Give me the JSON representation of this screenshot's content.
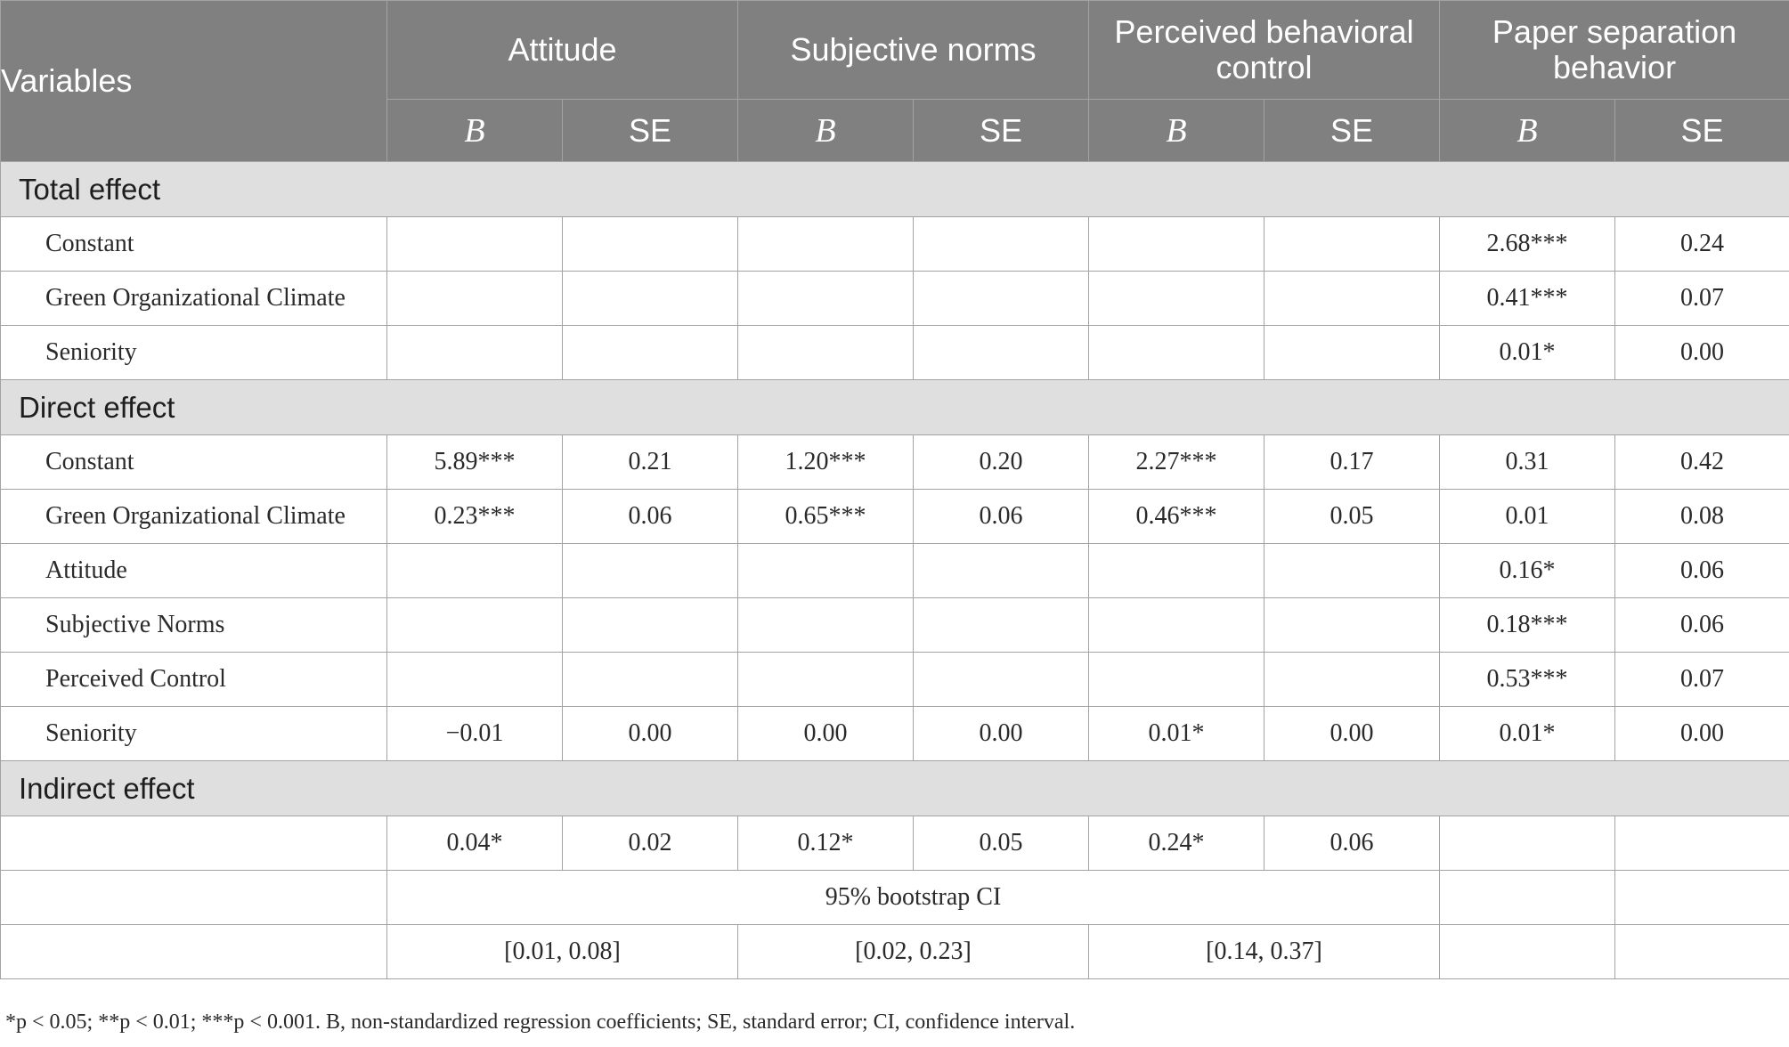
{
  "table": {
    "header": {
      "variables": "Variables",
      "groups": [
        "Attitude",
        "Subjective norms",
        "Perceived behavioral control",
        "Paper separation behavior"
      ],
      "sub": [
        "B",
        "SE"
      ]
    },
    "sections": {
      "total": {
        "title": "Total effect",
        "rows": [
          {
            "label": "Constant",
            "cells": [
              "",
              "",
              "",
              "",
              "",
              "",
              "2.68***",
              "0.24"
            ]
          },
          {
            "label": "Green Organizational Climate",
            "cells": [
              "",
              "",
              "",
              "",
              "",
              "",
              "0.41***",
              "0.07"
            ]
          },
          {
            "label": "Seniority",
            "cells": [
              "",
              "",
              "",
              "",
              "",
              "",
              "0.01*",
              "0.00"
            ]
          }
        ]
      },
      "direct": {
        "title": "Direct effect",
        "rows": [
          {
            "label": "Constant",
            "cells": [
              "5.89***",
              "0.21",
              "1.20***",
              "0.20",
              "2.27***",
              "0.17",
              "0.31",
              "0.42"
            ]
          },
          {
            "label": "Green Organizational Climate",
            "cells": [
              "0.23***",
              "0.06",
              "0.65***",
              "0.06",
              "0.46***",
              "0.05",
              "0.01",
              "0.08"
            ]
          },
          {
            "label": "Attitude",
            "cells": [
              "",
              "",
              "",
              "",
              "",
              "",
              "0.16*",
              "0.06"
            ]
          },
          {
            "label": "Subjective Norms",
            "cells": [
              "",
              "",
              "",
              "",
              "",
              "",
              "0.18***",
              "0.06"
            ]
          },
          {
            "label": "Perceived Control",
            "cells": [
              "",
              "",
              "",
              "",
              "",
              "",
              "0.53***",
              "0.07"
            ]
          },
          {
            "label": "Seniority",
            "cells": [
              "−0.01",
              "0.00",
              "0.00",
              "0.00",
              "0.01*",
              "0.00",
              "0.01*",
              "0.00"
            ]
          }
        ]
      },
      "indirect": {
        "title": "Indirect effect",
        "coef_row": {
          "label": "",
          "cells": [
            "0.04*",
            "0.02",
            "0.12*",
            "0.05",
            "0.24*",
            "0.06",
            "",
            ""
          ]
        },
        "ci_label": "95% bootstrap CI",
        "ci_values": [
          "[0.01, 0.08]",
          "[0.02, 0.23]",
          "[0.14, 0.37]"
        ]
      }
    },
    "note": "*p < 0.05; **p < 0.01; ***p < 0.001. B, non-standardized regression coefficients; SE, standard error; CI, confidence interval."
  }
}
